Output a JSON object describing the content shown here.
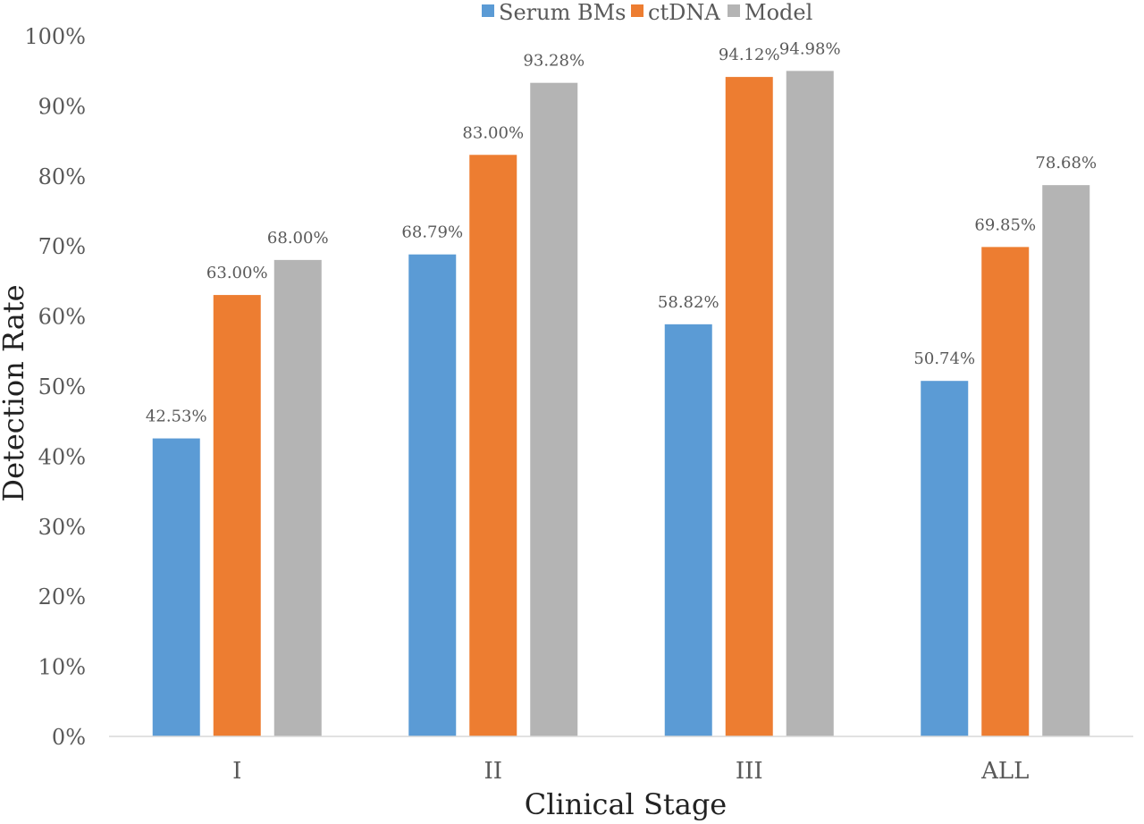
{
  "chart_data": {
    "type": "bar",
    "title": "",
    "xlabel": "Clinical Stage",
    "ylabel": "Detection Rate",
    "categories": [
      "I",
      "II",
      "III",
      "ALL"
    ],
    "series": [
      {
        "name": "Serum BMs",
        "color": "#5B9BD5",
        "values": [
          42.53,
          68.79,
          58.82,
          50.74
        ],
        "labels": [
          "42.53%",
          "68.79%",
          "58.82%",
          "50.74%"
        ]
      },
      {
        "name": "ctDNA",
        "color": "#ED7D31",
        "values": [
          63.0,
          83.0,
          94.12,
          69.85
        ],
        "labels": [
          "63.00%",
          "83.00%",
          "94.12%",
          "69.85%"
        ]
      },
      {
        "name": "Model",
        "color": "#B4B4B4",
        "values": [
          68.0,
          93.28,
          94.98,
          78.68
        ],
        "labels": [
          "68.00%",
          "93.28%",
          "94.98%",
          "78.68%"
        ]
      }
    ],
    "ylim": [
      0,
      100
    ],
    "yticks": [
      "0%",
      "10%",
      "20%",
      "30%",
      "40%",
      "50%",
      "60%",
      "70%",
      "80%",
      "90%",
      "100%"
    ],
    "grid": false,
    "legend": "top-center"
  }
}
